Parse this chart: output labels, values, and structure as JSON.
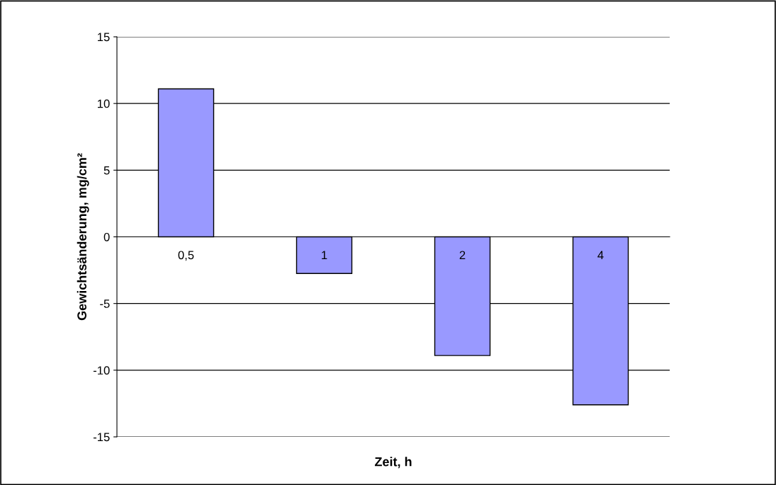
{
  "chart_data": {
    "type": "bar",
    "xlabel": "Zeit, h",
    "ylabel": "Gewichtsänderung, mg/cm²",
    "categories": [
      "0,5",
      "1",
      "2",
      "4"
    ],
    "series": [
      {
        "color": "#9999ff",
        "values": [
          11.1,
          -2.75,
          -8.9,
          -12.6
        ]
      }
    ],
    "ylim": [
      -15,
      15
    ],
    "yticks": [
      -15,
      -10,
      -5,
      0,
      5,
      10,
      15
    ],
    "grid": "y",
    "legend": false
  }
}
